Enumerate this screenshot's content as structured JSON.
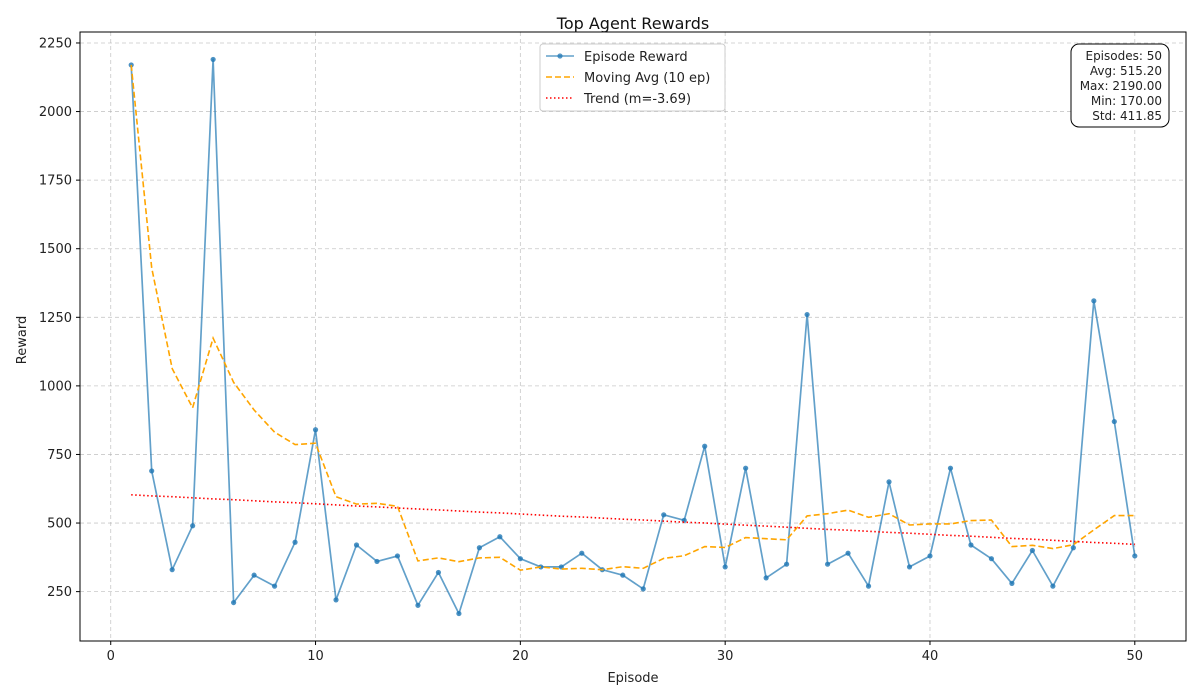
{
  "chart_data": {
    "type": "line",
    "title": "Top Agent Rewards",
    "xlabel": "Episode",
    "ylabel": "Reward",
    "xlim": [
      -1.5,
      52.5
    ],
    "ylim": [
      70,
      2290
    ],
    "xticks": [
      0,
      10,
      20,
      30,
      40,
      50
    ],
    "yticks": [
      250,
      500,
      750,
      1000,
      1250,
      1500,
      1750,
      2000,
      2250
    ],
    "grid": true,
    "legend_position": "upper center",
    "x": [
      1,
      2,
      3,
      4,
      5,
      6,
      7,
      8,
      9,
      10,
      11,
      12,
      13,
      14,
      15,
      16,
      17,
      18,
      19,
      20,
      21,
      22,
      23,
      24,
      25,
      26,
      27,
      28,
      29,
      30,
      31,
      32,
      33,
      34,
      35,
      36,
      37,
      38,
      39,
      40,
      41,
      42,
      43,
      44,
      45,
      46,
      47,
      48,
      49,
      50
    ],
    "series": [
      {
        "name": "Episode Reward",
        "style": "solid-with-markers",
        "color": "#1f77b4",
        "values": [
          2170,
          690,
          330,
          490,
          2190,
          210,
          310,
          270,
          430,
          840,
          220,
          420,
          360,
          380,
          200,
          320,
          170,
          410,
          450,
          370,
          340,
          340,
          390,
          330,
          310,
          260,
          530,
          510,
          780,
          340,
          700,
          300,
          350,
          1260,
          350,
          390,
          270,
          650,
          340,
          380,
          700,
          420,
          370,
          280,
          400,
          270,
          410,
          1310,
          870,
          380
        ]
      },
      {
        "name": "Moving Avg (10 ep)",
        "style": "dashed",
        "color": "#ffa500",
        "values": [
          2170,
          1430,
          1063,
          920,
          1174,
          1013,
          912,
          831,
          786,
          791,
          596,
          569,
          572,
          561,
          362,
          373,
          359,
          373,
          375,
          328,
          340,
          332,
          335,
          330,
          341,
          335,
          371,
          381,
          414,
          411,
          447,
          443,
          439,
          526,
          534,
          547,
          521,
          534,
          493,
          497,
          497,
          509,
          511,
          414,
          419,
          407,
          421,
          475,
          527,
          527
        ]
      },
      {
        "name": "Trend (m=-3.69)",
        "style": "dotted",
        "color": "#ff0000",
        "values": [
          603,
          599,
          596,
          592,
          588,
          585,
          581,
          577,
          574,
          570,
          566,
          562,
          559,
          555,
          551,
          548,
          544,
          540,
          537,
          533,
          529,
          525,
          522,
          518,
          514,
          511,
          507,
          503,
          500,
          496,
          492,
          489,
          485,
          481,
          477,
          474,
          470,
          466,
          463,
          459,
          455,
          452,
          448,
          444,
          441,
          437,
          433,
          429,
          426,
          422
        ]
      }
    ],
    "stats_box": {
      "lines": [
        "Episodes: 50",
        "Avg: 515.20",
        "Max: 2190.00",
        "Min: 170.00",
        "Std: 411.85"
      ]
    }
  }
}
